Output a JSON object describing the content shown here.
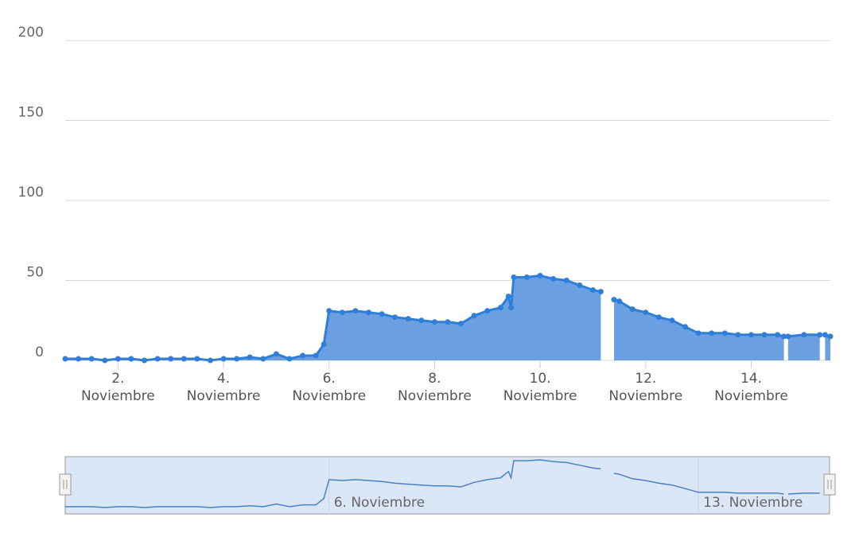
{
  "chart_data": {
    "type": "area",
    "color": "#2f7ed8",
    "fill": "#6aa0e2",
    "x": [
      1.0,
      1.25,
      1.5,
      1.75,
      2.0,
      2.25,
      2.5,
      2.75,
      3.0,
      3.25,
      3.5,
      3.75,
      4.0,
      4.25,
      4.5,
      4.75,
      5.0,
      5.25,
      5.5,
      5.75,
      5.9,
      6.0,
      6.25,
      6.5,
      6.75,
      7.0,
      7.25,
      7.5,
      7.75,
      8.0,
      8.25,
      8.5,
      8.75,
      9.0,
      9.25,
      9.4,
      9.45,
      9.5,
      9.75,
      10.0,
      10.25,
      10.5,
      10.75,
      11.0,
      11.15,
      11.25,
      11.4,
      11.5,
      11.75,
      12.0,
      12.25,
      12.5,
      12.75,
      13.0,
      13.25,
      13.5,
      13.75,
      14.0,
      14.25,
      14.5,
      14.62,
      14.66,
      14.7,
      15.0,
      15.3,
      15.35,
      15.4,
      15.5
    ],
    "values": [
      1,
      1,
      1,
      0,
      1,
      1,
      0,
      1,
      1,
      1,
      1,
      0,
      1,
      1,
      2,
      1,
      4,
      1,
      3,
      3,
      10,
      31,
      30,
      31,
      30,
      29,
      27,
      26,
      25,
      24,
      24,
      23,
      28,
      31,
      33,
      40,
      33,
      52,
      52,
      53,
      51,
      50,
      47,
      44,
      43,
      null,
      38,
      37,
      32,
      30,
      27,
      25,
      21,
      17,
      17,
      17,
      16,
      16,
      16,
      16,
      15,
      null,
      15,
      16,
      16,
      null,
      16,
      15
    ],
    "xlim": [
      1,
      15.5
    ],
    "ylim": [
      0,
      200
    ],
    "yticks": [
      0,
      50,
      100,
      150,
      200
    ],
    "xticks": [
      {
        "value": 2,
        "label": "2. Noviembre"
      },
      {
        "value": 4,
        "label": "4. Noviembre"
      },
      {
        "value": 6,
        "label": "6. Noviembre"
      },
      {
        "value": 8,
        "label": "8. Noviembre"
      },
      {
        "value": 10,
        "label": "10. Noviembre"
      },
      {
        "value": 12,
        "label": "12. Noviembre"
      },
      {
        "value": 14,
        "label": "14. Noviembre"
      }
    ],
    "grid": true,
    "navigator": {
      "xticks": [
        {
          "value": 6,
          "label": "6. Noviembre"
        },
        {
          "value": 13,
          "label": "13. Noviembre"
        }
      ]
    }
  }
}
